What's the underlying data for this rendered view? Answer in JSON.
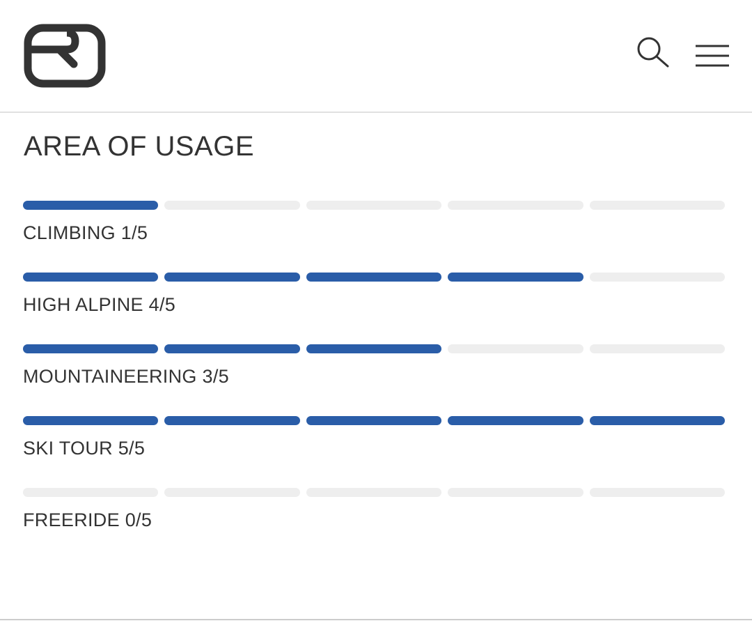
{
  "header": {
    "logo_icon": "ortovox-logo-icon",
    "search_icon": "search-icon",
    "menu_icon": "hamburger-menu-icon"
  },
  "section": {
    "title": "AREA OF USAGE"
  },
  "colors": {
    "filled": "#2a5da8",
    "empty": "#eeeeee",
    "text": "#333333"
  },
  "usage": [
    {
      "label": "CLIMBING 1/5",
      "level": 1,
      "max": 5
    },
    {
      "label": "HIGH ALPINE 4/5",
      "level": 4,
      "max": 5
    },
    {
      "label": "MOUNTAINEERING 3/5",
      "level": 3,
      "max": 5
    },
    {
      "label": "SKI TOUR 5/5",
      "level": 5,
      "max": 5
    },
    {
      "label": "FREERIDE 0/5",
      "level": 0,
      "max": 5
    }
  ]
}
